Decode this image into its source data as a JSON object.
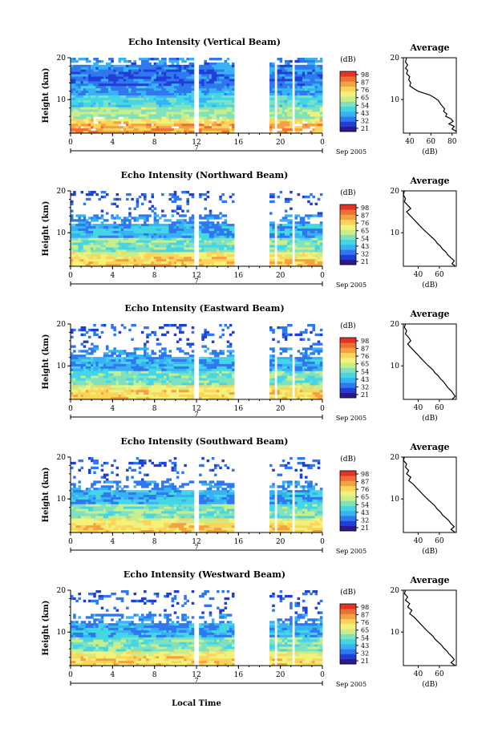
{
  "colors": {
    "scale": [
      "#2b1a8c",
      "#1f3fd6",
      "#2f78ee",
      "#38b2f5",
      "#45d6e6",
      "#7fe1c0",
      "#c8ee8c",
      "#f3f179",
      "#fbd45a",
      "#f5a043",
      "#ee6e35",
      "#e23424"
    ]
  },
  "footer": {
    "xlabel": "Local Time",
    "date": "Sep 2005"
  },
  "chart_data": [
    {
      "type": "heatmap",
      "title": "Echo Intensity (Vertical Beam)",
      "ylabel": "Height (km)",
      "xticks": [
        "0",
        "4",
        "8",
        "12",
        "16",
        "20",
        "0"
      ],
      "xlim": [
        0,
        24
      ],
      "ylim": [
        2,
        20
      ],
      "yticks": [
        "20",
        "10"
      ],
      "day_label": "7",
      "date_label": "Sep 2005",
      "colorbar": {
        "unit": "(dB)",
        "ticks": [
          "98",
          "87",
          "76",
          "65",
          "54",
          "43",
          "32",
          "21"
        ]
      },
      "data_gaps": [
        [
          11.8,
          12.2
        ],
        [
          15.6,
          19.0
        ],
        [
          19.5,
          19.6
        ],
        [
          20.3,
          20.4
        ],
        [
          21.1,
          21.4
        ]
      ],
      "profile": {
        "title": "Average",
        "xlabel": "(dB)",
        "xticks": [
          "40",
          "60",
          "80"
        ],
        "xlim": [
          34,
          84
        ],
        "yticks": [
          "20",
          "10"
        ],
        "points": [
          [
            37,
            20
          ],
          [
            36,
            19
          ],
          [
            38,
            18.3
          ],
          [
            36,
            17.5
          ],
          [
            38,
            17
          ],
          [
            37,
            16.2
          ],
          [
            40,
            15.5
          ],
          [
            39,
            14.8
          ],
          [
            41,
            14
          ],
          [
            40,
            13.3
          ],
          [
            44,
            12.6
          ],
          [
            48,
            12
          ],
          [
            53,
            11.6
          ],
          [
            59,
            11.1
          ],
          [
            63,
            10.5
          ],
          [
            67,
            9.8
          ],
          [
            69,
            9
          ],
          [
            71,
            8.4
          ],
          [
            73,
            7.8
          ],
          [
            72,
            7.2
          ],
          [
            75,
            6.6
          ],
          [
            74,
            6
          ],
          [
            79,
            5.4
          ],
          [
            81,
            4.8
          ],
          [
            77,
            4.2
          ],
          [
            82,
            3.6
          ],
          [
            80,
            3
          ],
          [
            84,
            2.4
          ]
        ]
      }
    },
    {
      "type": "heatmap",
      "title": "Echo Intensity (Northward Beam)",
      "ylabel": "Height (km)",
      "xticks": [
        "0",
        "4",
        "8",
        "12",
        "16",
        "20",
        "0"
      ],
      "xlim": [
        0,
        24
      ],
      "ylim": [
        2,
        20
      ],
      "yticks": [
        "20",
        "10"
      ],
      "day_label": "7",
      "date_label": "Sep 2005",
      "colorbar": {
        "unit": "(dB)",
        "ticks": [
          "98",
          "87",
          "76",
          "65",
          "54",
          "43",
          "32",
          "21"
        ]
      },
      "data_gaps": [
        [
          11.8,
          12.2
        ],
        [
          15.6,
          19.0
        ],
        [
          19.5,
          19.6
        ],
        [
          20.3,
          20.4
        ],
        [
          21.1,
          21.4
        ]
      ],
      "profile": {
        "title": "Average",
        "xlabel": "(dB)",
        "xticks": [
          "40",
          "60"
        ],
        "xlim": [
          26,
          76
        ],
        "yticks": [
          "20",
          "10"
        ],
        "points": [
          [
            27,
            20
          ],
          [
            26,
            19
          ],
          [
            28,
            18.2
          ],
          [
            27,
            17.4
          ],
          [
            30,
            16.6
          ],
          [
            33,
            15.8
          ],
          [
            29,
            15
          ],
          [
            32,
            14.2
          ],
          [
            35,
            13.4
          ],
          [
            38,
            12.6
          ],
          [
            41,
            11.8
          ],
          [
            44,
            11
          ],
          [
            47,
            10.3
          ],
          [
            50,
            9.6
          ],
          [
            53,
            8.9
          ],
          [
            56,
            8.2
          ],
          [
            58,
            7.5
          ],
          [
            61,
            6.8
          ],
          [
            63,
            6.1
          ],
          [
            66,
            5.4
          ],
          [
            68,
            4.7
          ],
          [
            71,
            4
          ],
          [
            74,
            3.3
          ],
          [
            72,
            2.6
          ],
          [
            75,
            2
          ]
        ]
      }
    },
    {
      "type": "heatmap",
      "title": "Echo Intensity (Eastward Beam)",
      "ylabel": "Height (km)",
      "xticks": [
        "0",
        "4",
        "8",
        "12",
        "16",
        "20",
        "0"
      ],
      "xlim": [
        0,
        24
      ],
      "ylim": [
        2,
        20
      ],
      "yticks": [
        "20",
        "10"
      ],
      "day_label": "7",
      "date_label": "Sep 2005",
      "colorbar": {
        "unit": "(dB)",
        "ticks": [
          "98",
          "87",
          "76",
          "65",
          "54",
          "43",
          "32",
          "21"
        ]
      },
      "data_gaps": [
        [
          11.8,
          12.2
        ],
        [
          15.6,
          19.0
        ],
        [
          19.5,
          19.6
        ],
        [
          20.3,
          20.4
        ],
        [
          21.1,
          21.4
        ]
      ],
      "profile": {
        "title": "Average",
        "xlabel": "(dB)",
        "xticks": [
          "40",
          "60"
        ],
        "xlim": [
          26,
          76
        ],
        "yticks": [
          "20",
          "10"
        ],
        "points": [
          [
            28,
            20
          ],
          [
            27,
            19.2
          ],
          [
            29,
            18.4
          ],
          [
            28,
            17.6
          ],
          [
            31,
            16.8
          ],
          [
            33,
            16
          ],
          [
            30,
            15.2
          ],
          [
            33,
            14.4
          ],
          [
            36,
            13.6
          ],
          [
            39,
            12.8
          ],
          [
            42,
            12
          ],
          [
            45,
            11.2
          ],
          [
            48,
            10.4
          ],
          [
            51,
            9.7
          ],
          [
            54,
            9
          ],
          [
            56,
            8.3
          ],
          [
            59,
            7.6
          ],
          [
            61,
            6.9
          ],
          [
            64,
            6.2
          ],
          [
            66,
            5.5
          ],
          [
            68,
            4.8
          ],
          [
            71,
            4.1
          ],
          [
            73,
            3.4
          ],
          [
            75,
            2.7
          ],
          [
            72,
            2
          ]
        ]
      }
    },
    {
      "type": "heatmap",
      "title": "Echo Intensity (Southward Beam)",
      "ylabel": "Height (km)",
      "xticks": [
        "0",
        "4",
        "8",
        "12",
        "16",
        "20",
        "0"
      ],
      "xlim": [
        0,
        24
      ],
      "ylim": [
        2,
        20
      ],
      "yticks": [
        "20",
        "10"
      ],
      "day_label": "7",
      "date_label": "Sep 2005",
      "colorbar": {
        "unit": "(dB)",
        "ticks": [
          "98",
          "87",
          "76",
          "65",
          "54",
          "43",
          "32",
          "21"
        ]
      },
      "data_gaps": [
        [
          11.8,
          12.2
        ],
        [
          15.6,
          19.0
        ],
        [
          19.5,
          19.6
        ],
        [
          20.3,
          20.4
        ],
        [
          21.1,
          21.4
        ]
      ],
      "profile": {
        "title": "Average",
        "xlabel": "(dB)",
        "xticks": [
          "40",
          "60"
        ],
        "xlim": [
          26,
          76
        ],
        "yticks": [
          "20",
          "10"
        ],
        "points": [
          [
            27,
            20
          ],
          [
            26,
            19.2
          ],
          [
            29,
            18.4
          ],
          [
            28,
            17.6
          ],
          [
            31,
            16.8
          ],
          [
            29,
            16
          ],
          [
            33,
            15.2
          ],
          [
            31,
            14.4
          ],
          [
            35,
            13.6
          ],
          [
            38,
            12.8
          ],
          [
            41,
            12
          ],
          [
            44,
            11.2
          ],
          [
            47,
            10.4
          ],
          [
            50,
            9.7
          ],
          [
            53,
            9
          ],
          [
            56,
            8.3
          ],
          [
            58,
            7.6
          ],
          [
            61,
            6.9
          ],
          [
            63,
            6.2
          ],
          [
            66,
            5.5
          ],
          [
            69,
            4.8
          ],
          [
            71,
            4.1
          ],
          [
            74,
            3.4
          ],
          [
            71,
            2.7
          ],
          [
            75,
            2
          ]
        ]
      }
    },
    {
      "type": "heatmap",
      "title": "Echo Intensity (Westward Beam)",
      "ylabel": "Height (km)",
      "xticks": [
        "0",
        "4",
        "8",
        "12",
        "16",
        "20",
        "0"
      ],
      "xlim": [
        0,
        24
      ],
      "ylim": [
        2,
        20
      ],
      "yticks": [
        "20",
        "10"
      ],
      "day_label": "7",
      "date_label": "Sep 2005",
      "colorbar": {
        "unit": "(dB)",
        "ticks": [
          "98",
          "87",
          "76",
          "65",
          "54",
          "43",
          "32",
          "21"
        ]
      },
      "data_gaps": [
        [
          11.8,
          12.2
        ],
        [
          15.6,
          19.0
        ],
        [
          19.5,
          19.6
        ],
        [
          20.3,
          20.4
        ],
        [
          21.1,
          21.4
        ]
      ],
      "profile": {
        "title": "Average",
        "xlabel": "(dB)",
        "xticks": [
          "40",
          "60"
        ],
        "xlim": [
          26,
          76
        ],
        "yticks": [
          "20",
          "10"
        ],
        "points": [
          [
            28,
            20
          ],
          [
            27,
            19.2
          ],
          [
            30,
            18.4
          ],
          [
            28,
            17.6
          ],
          [
            32,
            16.8
          ],
          [
            30,
            16
          ],
          [
            34,
            15.2
          ],
          [
            32,
            14.4
          ],
          [
            36,
            13.6
          ],
          [
            39,
            12.8
          ],
          [
            42,
            12
          ],
          [
            45,
            11.2
          ],
          [
            48,
            10.4
          ],
          [
            51,
            9.7
          ],
          [
            54,
            9
          ],
          [
            56,
            8.3
          ],
          [
            59,
            7.6
          ],
          [
            62,
            6.9
          ],
          [
            64,
            6.2
          ],
          [
            67,
            5.5
          ],
          [
            69,
            4.8
          ],
          [
            72,
            4.1
          ],
          [
            74,
            3.4
          ],
          [
            71,
            2.7
          ],
          [
            75,
            2
          ]
        ]
      }
    }
  ]
}
